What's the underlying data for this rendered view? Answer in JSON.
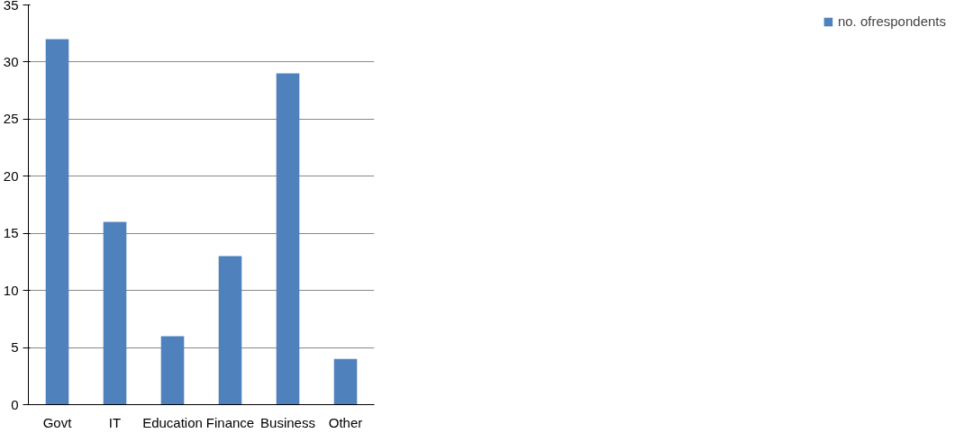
{
  "chart_data": {
    "type": "bar",
    "categories": [
      "Govt",
      "IT",
      "Education",
      "Finance",
      "Business",
      "Other"
    ],
    "series": [
      {
        "name": "no. ofrespondents",
        "color": "#4f81bd",
        "values": [
          32,
          16,
          6,
          13,
          29,
          4
        ]
      }
    ],
    "ylim": [
      0,
      35
    ],
    "yticks": [
      0,
      5,
      10,
      15,
      20,
      25,
      30,
      35
    ],
    "grid": "y",
    "legend": "right"
  }
}
